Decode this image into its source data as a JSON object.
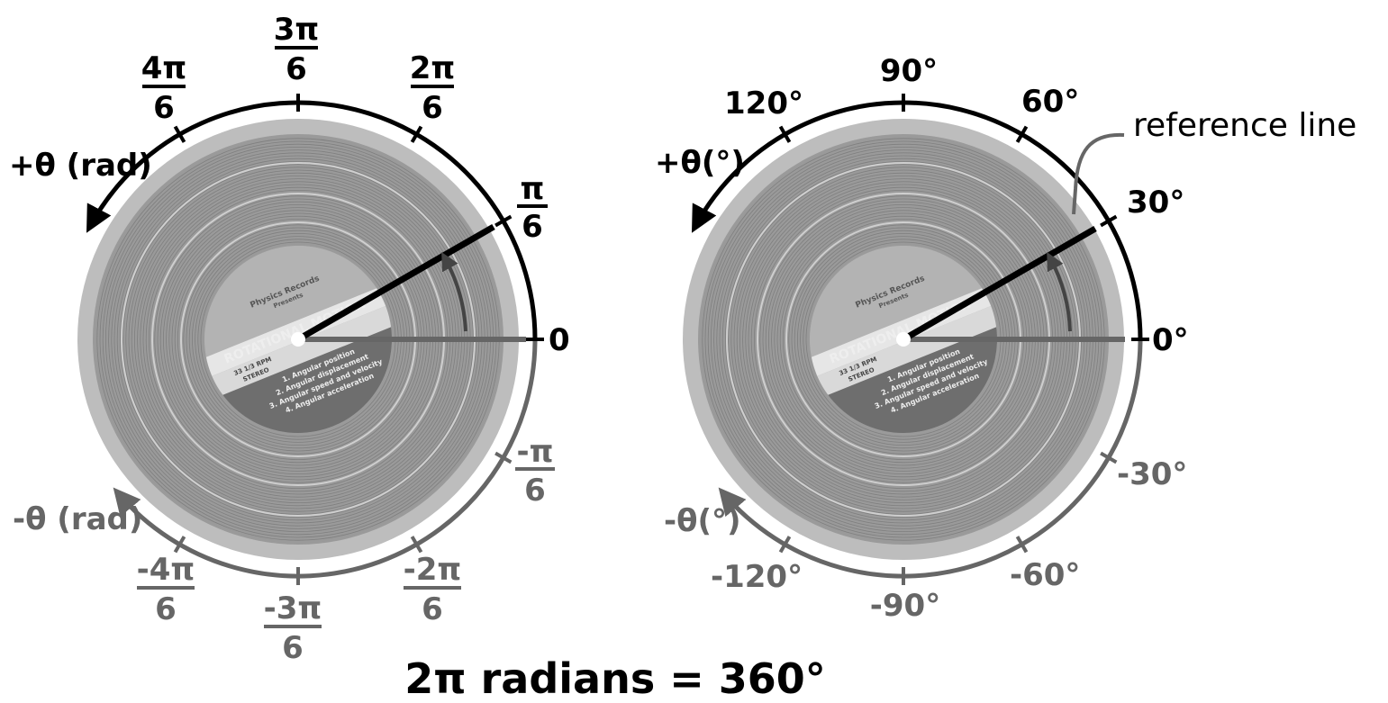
{
  "caption": "2π radians = 360°",
  "left": {
    "label_pos_axis": "+θ (rad)",
    "label_neg_axis": "-θ (rad)",
    "zero_label": "0",
    "pos_ticks": [
      {
        "num": "π",
        "den": "6"
      },
      {
        "num": "2π",
        "den": "6"
      },
      {
        "num": "3π",
        "den": "6"
      },
      {
        "num": "4π",
        "den": "6"
      }
    ],
    "neg_ticks": [
      {
        "num": "-π",
        "den": "6"
      },
      {
        "num": "-2π",
        "den": "6"
      },
      {
        "num": "-3π",
        "den": "6"
      },
      {
        "num": "-4π",
        "den": "6"
      }
    ]
  },
  "right": {
    "label_pos_axis": "+θ(°)",
    "label_neg_axis": "-θ(°)",
    "zero_label": "0°",
    "pos_ticks": [
      "30°",
      "60°",
      "90°",
      "120°"
    ],
    "neg_ticks": [
      "-30°",
      "-60°",
      "-90°",
      "-120°"
    ],
    "reference_line_label": "reference line"
  },
  "record_label": {
    "presenter": "Physics Records",
    "presents": "Presents",
    "title": "ROTATIONAL MOTION",
    "rpm": "33 1/3 RPM",
    "stereo": "STEREO",
    "tracks": [
      "1. Angular position",
      "2. Angular displacement",
      "3. Angular speed and velocity",
      "4. Angular acceleration"
    ]
  },
  "colors": {
    "positive": "#000000",
    "negative": "#666666",
    "record": "#9a9a9a",
    "record_edge": "#bdbdbd"
  }
}
